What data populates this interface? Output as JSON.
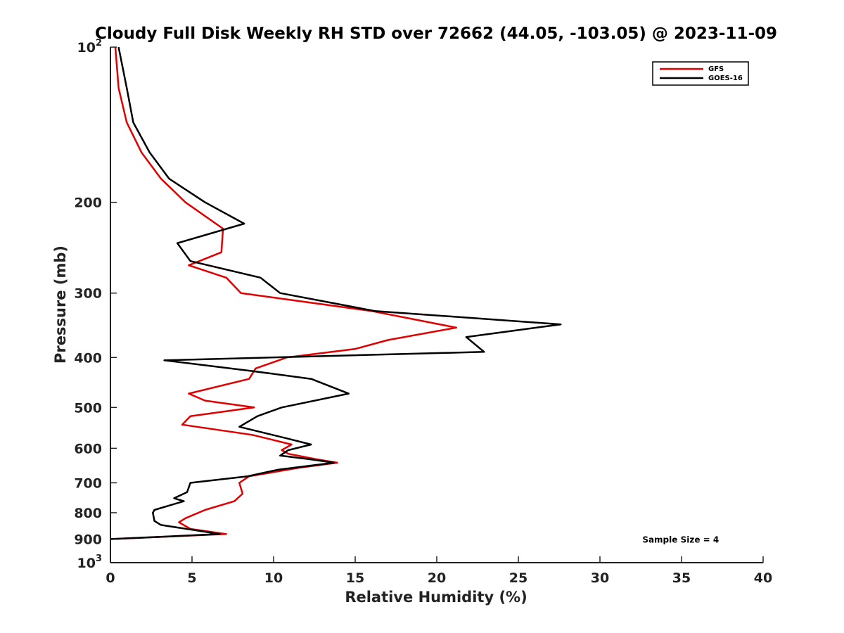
{
  "chart_data": {
    "type": "line",
    "title": "Cloudy Full Disk Weekly RH STD over 72662 (44.05, -103.05) @ 2023-11-09",
    "xlabel": "Relative Humidity (%)",
    "ylabel": "Pressure (mb)",
    "xlim": [
      0,
      40
    ],
    "ylim": [
      100,
      1000
    ],
    "y_scale": "log",
    "y_reversed": true,
    "grid": false,
    "legend_position": "top-right",
    "x_ticks": [
      0,
      5,
      10,
      15,
      20,
      25,
      30,
      35,
      40
    ],
    "y_ticks": [
      {
        "value": 100,
        "label": "10",
        "sup": "2"
      },
      {
        "value": 200,
        "label": "200",
        "sup": ""
      },
      {
        "value": 300,
        "label": "300",
        "sup": ""
      },
      {
        "value": 400,
        "label": "400",
        "sup": ""
      },
      {
        "value": 500,
        "label": "500",
        "sup": ""
      },
      {
        "value": 600,
        "label": "600",
        "sup": ""
      },
      {
        "value": 700,
        "label": "700",
        "sup": ""
      },
      {
        "value": 800,
        "label": "800",
        "sup": ""
      },
      {
        "value": 900,
        "label": "900",
        "sup": ""
      },
      {
        "value": 1000,
        "label": "10",
        "sup": "3"
      }
    ],
    "series": [
      {
        "name": "GFS",
        "color": "#e00000",
        "points": [
          [
            0.3,
            100
          ],
          [
            0.5,
            120
          ],
          [
            1.0,
            140
          ],
          [
            1.9,
            160
          ],
          [
            3.1,
            180
          ],
          [
            4.6,
            200
          ],
          [
            6.9,
            225
          ],
          [
            6.8,
            250
          ],
          [
            4.8,
            265
          ],
          [
            7.1,
            280
          ],
          [
            8.0,
            300
          ],
          [
            16.0,
            325
          ],
          [
            21.2,
            350
          ],
          [
            17.0,
            370
          ],
          [
            15.0,
            385
          ],
          [
            10.8,
            400
          ],
          [
            8.9,
            420
          ],
          [
            8.5,
            440
          ],
          [
            4.8,
            470
          ],
          [
            5.8,
            485
          ],
          [
            8.8,
            500
          ],
          [
            4.9,
            520
          ],
          [
            4.4,
            540
          ],
          [
            8.7,
            565
          ],
          [
            11.1,
            590
          ],
          [
            10.5,
            605
          ],
          [
            10.9,
            615
          ],
          [
            12.6,
            630
          ],
          [
            13.9,
            640
          ],
          [
            11.5,
            655
          ],
          [
            8.5,
            680
          ],
          [
            7.9,
            700
          ],
          [
            8.1,
            735
          ],
          [
            7.6,
            760
          ],
          [
            5.8,
            790
          ],
          [
            4.6,
            820
          ],
          [
            4.2,
            835
          ],
          [
            4.9,
            860
          ],
          [
            7.1,
            880
          ],
          [
            0.0,
            900
          ]
        ]
      },
      {
        "name": "GOES-16",
        "color": "#000000",
        "points": [
          [
            0.5,
            100
          ],
          [
            1.0,
            120
          ],
          [
            1.4,
            140
          ],
          [
            2.4,
            160
          ],
          [
            3.6,
            180
          ],
          [
            5.8,
            200
          ],
          [
            8.2,
            220
          ],
          [
            4.1,
            240
          ],
          [
            4.9,
            260
          ],
          [
            9.2,
            280
          ],
          [
            10.4,
            300
          ],
          [
            16.2,
            325
          ],
          [
            27.6,
            345
          ],
          [
            21.8,
            365
          ],
          [
            22.9,
            390
          ],
          [
            3.3,
            405
          ],
          [
            8.7,
            425
          ],
          [
            12.3,
            440
          ],
          [
            14.6,
            470
          ],
          [
            10.5,
            500
          ],
          [
            9.0,
            520
          ],
          [
            7.9,
            545
          ],
          [
            10.9,
            575
          ],
          [
            12.3,
            590
          ],
          [
            10.9,
            605
          ],
          [
            10.4,
            620
          ],
          [
            12.2,
            630
          ],
          [
            13.7,
            640
          ],
          [
            10.3,
            660
          ],
          [
            8.4,
            680
          ],
          [
            4.9,
            700
          ],
          [
            4.7,
            730
          ],
          [
            3.9,
            750
          ],
          [
            4.5,
            760
          ],
          [
            2.7,
            790
          ],
          [
            2.6,
            800
          ],
          [
            2.7,
            830
          ],
          [
            3.1,
            845
          ],
          [
            6.7,
            880
          ],
          [
            0.0,
            900
          ]
        ]
      }
    ],
    "annotations": [
      {
        "text": "Sample Size = 4",
        "x": 32.6,
        "y": 900
      }
    ]
  }
}
